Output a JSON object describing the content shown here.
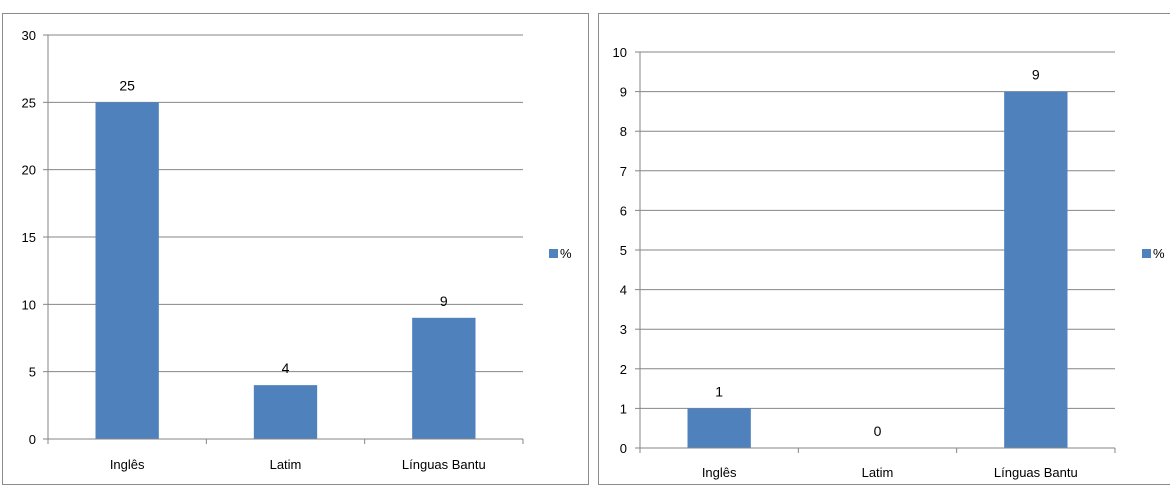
{
  "chart_data": [
    {
      "type": "bar",
      "categories": [
        "Inglês",
        "Latim",
        "Línguas Bantu"
      ],
      "series": [
        {
          "name": "%",
          "values": [
            25,
            4,
            9
          ],
          "color": "#4f81bd"
        }
      ],
      "ylim": [
        0,
        30
      ],
      "yticks": [
        0,
        5,
        10,
        15,
        20,
        25,
        30
      ],
      "grid": true,
      "legend": "right",
      "data_labels": true
    },
    {
      "type": "bar",
      "categories": [
        "Inglês",
        "Latim",
        "Línguas Bantu"
      ],
      "series": [
        {
          "name": "%",
          "values": [
            1,
            0,
            9
          ],
          "color": "#4f81bd"
        }
      ],
      "ylim": [
        0,
        10
      ],
      "yticks": [
        0,
        1,
        2,
        3,
        4,
        5,
        6,
        7,
        8,
        9,
        10
      ],
      "grid": true,
      "legend": "right",
      "data_labels": true
    }
  ]
}
